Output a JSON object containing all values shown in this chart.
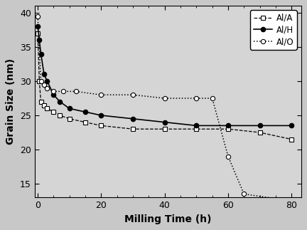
{
  "AlA_x": [
    0,
    0.5,
    1,
    2,
    3,
    5,
    7,
    10,
    15,
    20,
    30,
    40,
    50,
    60,
    70,
    80
  ],
  "AlA_y": [
    37,
    30,
    27,
    26.5,
    26,
    25.5,
    25,
    24.5,
    24,
    23.5,
    23,
    23,
    23,
    23,
    22.5,
    21.5
  ],
  "AlH_x": [
    0,
    0.5,
    1,
    2,
    3,
    5,
    7,
    10,
    15,
    20,
    30,
    40,
    50,
    60,
    70,
    80
  ],
  "AlH_y": [
    38,
    36,
    34,
    31,
    30,
    28,
    27,
    26,
    25.5,
    25,
    24.5,
    24,
    23.5,
    23.5,
    23.5,
    23.5
  ],
  "AlO_x": [
    0,
    1,
    2,
    3,
    5,
    8,
    12,
    20,
    30,
    40,
    50,
    55,
    60,
    65,
    80
  ],
  "AlO_y": [
    39.5,
    30,
    29.5,
    29,
    28.5,
    28.5,
    28.5,
    28,
    28,
    27.5,
    27.5,
    27.5,
    19,
    13.5,
    12.5
  ],
  "xlabel": "Milling Time (h)",
  "ylabel": "Grain Size (nm)",
  "xlim": [
    -1,
    83
  ],
  "ylim": [
    13,
    41
  ],
  "yticks": [
    15,
    20,
    25,
    30,
    35,
    40
  ],
  "xticks": [
    0,
    20,
    40,
    60,
    80
  ],
  "legend_labels": [
    "Al/A",
    "Al/H",
    "Al/O"
  ],
  "bg_color": "#c8c8c8",
  "plot_bg_color": "#d5d5d5"
}
